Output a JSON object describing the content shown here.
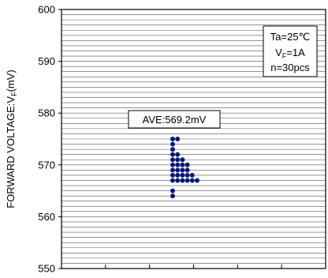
{
  "chart_data": {
    "type": "scatter",
    "ylabel": {
      "main": "FORWARD VOLTAGE:V",
      "sub": "F",
      "unit": "(mV)"
    },
    "ylim": [
      550,
      600
    ],
    "yticks": [
      550,
      560,
      570,
      580,
      590,
      600
    ],
    "grid": true,
    "grid_step": 1,
    "xtick_count": 6,
    "average_label": "AVE:569.2mV",
    "conditions": {
      "line1": "Ta=25℃",
      "line2_main": "V",
      "line2_sub": "F",
      "line2_rest": "=1A",
      "line3": "n=30pcs"
    },
    "point_color": "#0a1a78",
    "points_by_column": [
      {
        "column": 0,
        "values": [
          564,
          565,
          567,
          568,
          569,
          570,
          571,
          572,
          573,
          574,
          575
        ]
      },
      {
        "column": 1,
        "values": [
          567,
          568,
          569,
          570,
          571,
          572,
          575
        ]
      },
      {
        "column": 2,
        "values": [
          567,
          568,
          569,
          570,
          571
        ]
      },
      {
        "column": 3,
        "values": [
          567,
          568,
          569,
          570
        ]
      },
      {
        "column": 4,
        "values": [
          567,
          568
        ]
      },
      {
        "column": 5,
        "values": [
          567
        ]
      }
    ]
  }
}
